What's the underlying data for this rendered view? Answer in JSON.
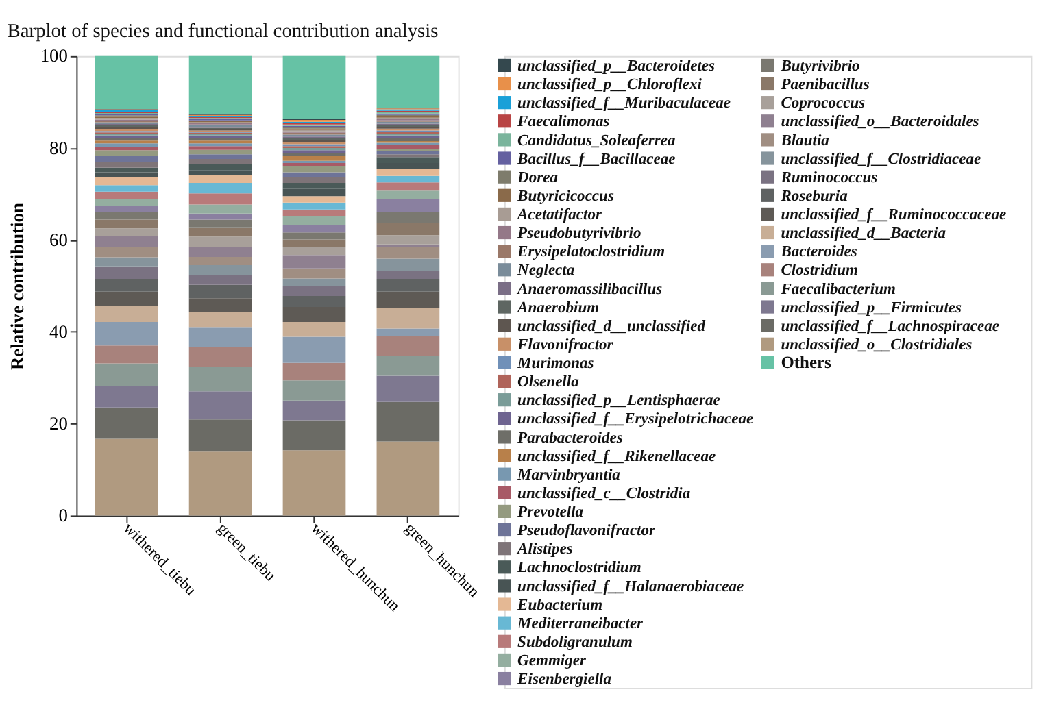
{
  "chart_data": {
    "type": "bar",
    "stacked": true,
    "title": "Barplot of species and functional contribution analysis",
    "ylabel": "Relative contribution",
    "categories": [
      "withered_tiebu",
      "green_tiebu",
      "withered_hunchun",
      "green_hunchun"
    ],
    "ylim": [
      0,
      100
    ],
    "yticks": [
      0,
      20,
      40,
      60,
      80,
      100
    ],
    "grid": false,
    "legend": "right",
    "series": [
      {
        "name": "unclassified_o__Clostridiales",
        "color": "#b09a80",
        "values": [
          16.7,
          13.9,
          14.2,
          16.1
        ]
      },
      {
        "name": "unclassified_f__Lachnospiraceae",
        "color": "#6b6b65",
        "values": [
          6.8,
          7.0,
          6.5,
          8.6
        ]
      },
      {
        "name": "unclassified_p__Firmicutes",
        "color": "#7e7890",
        "values": [
          4.7,
          6.1,
          4.3,
          5.7
        ]
      },
      {
        "name": "Faecalibacterium",
        "color": "#8a9a94",
        "values": [
          4.9,
          5.3,
          4.4,
          4.3
        ]
      },
      {
        "name": "Clostridium",
        "color": "#a8827c",
        "values": [
          3.9,
          4.4,
          3.8,
          4.3
        ]
      },
      {
        "name": "Bacteroides",
        "color": "#8a9cb0",
        "values": [
          5.1,
          4.2,
          5.7,
          1.7
        ]
      },
      {
        "name": "unclassified_d__Bacteria",
        "color": "#c8ae96",
        "values": [
          3.5,
          3.4,
          3.2,
          4.5
        ]
      },
      {
        "name": "unclassified_f__Ruminococcaceae",
        "color": "#5e5a55",
        "values": [
          3.1,
          3.0,
          3.3,
          3.5
        ]
      },
      {
        "name": "Roseburia",
        "color": "#5f6262",
        "values": [
          2.8,
          2.9,
          2.4,
          2.8
        ]
      },
      {
        "name": "Ruminococcus",
        "color": "#7a7282",
        "values": [
          2.6,
          2.1,
          2.1,
          1.8
        ]
      },
      {
        "name": "unclassified_f__Clostridiaceae",
        "color": "#86949c",
        "values": [
          2.1,
          2.2,
          1.7,
          2.6
        ]
      },
      {
        "name": "Blautia",
        "color": "#a08e82",
        "values": [
          2.2,
          1.8,
          2.2,
          2.6
        ]
      },
      {
        "name": "unclassified_o__Bacteroidales",
        "color": "#8f8090",
        "values": [
          2.5,
          2.1,
          2.9,
          0.5
        ]
      },
      {
        "name": "Coprococcus",
        "color": "#a8a09a",
        "values": [
          1.6,
          2.3,
          1.8,
          2.0
        ]
      },
      {
        "name": "Paenibacillus",
        "color": "#8a7868",
        "values": [
          1.9,
          1.9,
          1.6,
          2.6
        ]
      },
      {
        "name": "Butyrivibrio",
        "color": "#7a7870",
        "values": [
          1.7,
          1.8,
          1.5,
          2.4
        ]
      },
      {
        "name": "Eisenbergiella",
        "color": "#8a80a0",
        "values": [
          1.3,
          1.3,
          1.6,
          2.9
        ]
      },
      {
        "name": "Gemmiger",
        "color": "#94aea0",
        "values": [
          1.5,
          2.0,
          2.0,
          1.8
        ]
      },
      {
        "name": "Subdoligranulum",
        "color": "#b87a7a",
        "values": [
          1.6,
          2.4,
          1.4,
          1.8
        ]
      },
      {
        "name": "Mediterraneibacter",
        "color": "#68b8d4",
        "values": [
          1.4,
          2.3,
          1.5,
          1.4
        ]
      },
      {
        "name": "Eubacterium",
        "color": "#e4b894",
        "values": [
          1.8,
          1.7,
          1.4,
          1.5
        ]
      },
      {
        "name": "unclassified_f__Halanaerobiaceae",
        "color": "#485454",
        "values": [
          1.0,
          1.1,
          1.6,
          1.3
        ]
      },
      {
        "name": "Lachnoclostridium",
        "color": "#4a5a58",
        "values": [
          1.0,
          1.2,
          1.3,
          1.3
        ]
      },
      {
        "name": "Alistipes",
        "color": "#7e7478",
        "values": [
          1.3,
          1.2,
          1.2,
          0.6
        ]
      },
      {
        "name": "Pseudoflavonifractor",
        "color": "#6e7498",
        "values": [
          1.2,
          1.0,
          1.1,
          0.8
        ]
      },
      {
        "name": "Prevotella",
        "color": "#949a80",
        "values": [
          1.3,
          1.0,
          1.3,
          0.4
        ]
      },
      {
        "name": "unclassified_c__Clostridia",
        "color": "#a85a66",
        "values": [
          0.8,
          0.8,
          0.7,
          0.8
        ]
      },
      {
        "name": "Marvinbryantia",
        "color": "#7898b0",
        "values": [
          0.7,
          0.6,
          0.5,
          0.5
        ]
      },
      {
        "name": "unclassified_f__Rikenellaceae",
        "color": "#b8804a",
        "values": [
          0.6,
          0.6,
          1.0,
          0.4
        ]
      },
      {
        "name": "Parabacteroides",
        "color": "#6e6e68",
        "values": [
          0.6,
          0.6,
          0.7,
          0.7
        ]
      },
      {
        "name": "unclassified_f__Erysipelotrichaceae",
        "color": "#6e6490",
        "values": [
          0.5,
          0.5,
          0.6,
          0.5
        ]
      },
      {
        "name": "unclassified_p__Lentisphaerae",
        "color": "#7a9c98",
        "values": [
          0.4,
          0.3,
          0.5,
          0.4
        ]
      },
      {
        "name": "Olsenella",
        "color": "#b0645a",
        "values": [
          0.3,
          0.3,
          0.4,
          0.4
        ]
      },
      {
        "name": "Murimonas",
        "color": "#7090b8",
        "values": [
          0.3,
          0.2,
          0.4,
          0.3
        ]
      },
      {
        "name": "Flavonifractor",
        "color": "#c89068",
        "values": [
          0.4,
          0.3,
          0.5,
          0.4
        ]
      },
      {
        "name": "unclassified_d__unclassified",
        "color": "#5e5650",
        "values": [
          0.4,
          0.3,
          0.4,
          0.4
        ]
      },
      {
        "name": "Anaerobium",
        "color": "#5e6662",
        "values": [
          0.4,
          0.3,
          0.4,
          0.4
        ]
      },
      {
        "name": "Anaeromassilibacillus",
        "color": "#7a6e86",
        "values": [
          0.3,
          0.2,
          0.4,
          0.3
        ]
      },
      {
        "name": "Neglecta",
        "color": "#7a8c9a",
        "values": [
          0.4,
          0.3,
          0.4,
          0.4
        ]
      },
      {
        "name": "Erysipelatoclostridium",
        "color": "#9a7868",
        "values": [
          0.3,
          0.2,
          0.4,
          0.3
        ]
      },
      {
        "name": "Pseudobutyrivibrio",
        "color": "#947888",
        "values": [
          0.3,
          0.3,
          0.3,
          0.3
        ]
      },
      {
        "name": "Acetatifactor",
        "color": "#a89c94",
        "values": [
          0.3,
          0.2,
          0.3,
          0.3
        ]
      },
      {
        "name": "Butyricicoccus",
        "color": "#8a6a4a",
        "values": [
          0.3,
          0.2,
          0.3,
          0.3
        ]
      },
      {
        "name": "Dorea",
        "color": "#7e7c6c",
        "values": [
          0.3,
          0.2,
          0.3,
          0.3
        ]
      },
      {
        "name": "Bacillus_f__Bacillaceae",
        "color": "#6460a0",
        "values": [
          0.3,
          0.3,
          0.3,
          0.3
        ]
      },
      {
        "name": "Candidatus_Soleaferrea",
        "color": "#7ab49c",
        "values": [
          0.2,
          0.2,
          0.3,
          0.3
        ]
      },
      {
        "name": "Faecalimonas",
        "color": "#b84444",
        "values": [
          0.2,
          0.2,
          0.3,
          0.3
        ]
      },
      {
        "name": "unclassified_f__Muribaculaceae",
        "color": "#1aa0d8",
        "values": [
          0.4,
          0.3,
          0.3,
          0.3
        ]
      },
      {
        "name": "unclassified_p__Chloroflexi",
        "color": "#e8904a",
        "values": [
          0.2,
          0.2,
          0.4,
          0.2
        ]
      },
      {
        "name": "unclassified_p__Bacteroidetes",
        "color": "#34484e",
        "values": [
          0.1,
          0.1,
          0.3,
          0.2
        ]
      },
      {
        "name": "Others",
        "color": "#66c2a5",
        "values": [
          11.5,
          12.7,
          13.6,
          11.2
        ]
      }
    ]
  }
}
